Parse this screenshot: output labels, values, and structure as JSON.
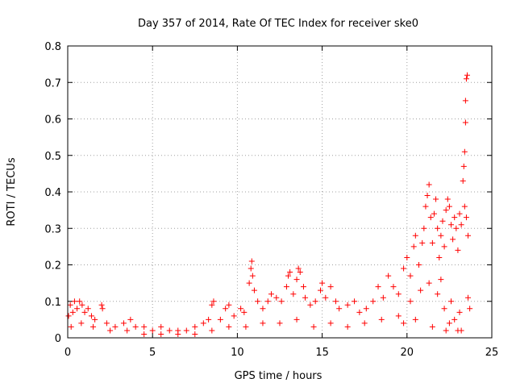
{
  "chart_data": {
    "type": "scatter",
    "title": "Day 357 of 2014, Rate Of TEC Index for receiver ske0",
    "xlabel": "GPS time / hours",
    "ylabel": "ROTI / TECUs",
    "xlim": [
      0,
      25
    ],
    "ylim": [
      0,
      0.8
    ],
    "xticks": [
      0,
      5,
      10,
      15,
      20,
      25
    ],
    "xtick_labels": [
      "0",
      "5",
      "10",
      "15",
      "20",
      "25"
    ],
    "yticks": [
      0,
      0.1,
      0.2,
      0.3,
      0.4,
      0.5,
      0.6,
      0.7,
      0.8
    ],
    "ytick_labels": [
      "0",
      "0.1",
      "0.2",
      "0.3",
      "0.4",
      "0.5",
      "0.6",
      "0.7",
      "0.8"
    ],
    "grid": true,
    "marker": "+",
    "color": "#ff0000",
    "series": [
      {
        "name": "ROTI",
        "points": [
          [
            0.05,
            0.06
          ],
          [
            0.15,
            0.09
          ],
          [
            0.3,
            0.07
          ],
          [
            0.4,
            0.1
          ],
          [
            0.55,
            0.08
          ],
          [
            0.7,
            0.1
          ],
          [
            0.85,
            0.09
          ],
          [
            1.0,
            0.07
          ],
          [
            1.2,
            0.08
          ],
          [
            1.4,
            0.06
          ],
          [
            1.6,
            0.05
          ],
          [
            2.0,
            0.09
          ],
          [
            2.05,
            0.08
          ],
          [
            2.3,
            0.04
          ],
          [
            2.8,
            0.03
          ],
          [
            3.3,
            0.04
          ],
          [
            3.7,
            0.05
          ],
          [
            4.0,
            0.03
          ],
          [
            4.5,
            0.03
          ],
          [
            5.0,
            0.02
          ],
          [
            5.5,
            0.03
          ],
          [
            6.0,
            0.02
          ],
          [
            6.5,
            0.02
          ],
          [
            7.0,
            0.02
          ],
          [
            7.5,
            0.03
          ],
          [
            8.0,
            0.04
          ],
          [
            8.3,
            0.05
          ],
          [
            8.5,
            0.09
          ],
          [
            8.6,
            0.1
          ],
          [
            9.0,
            0.05
          ],
          [
            9.3,
            0.08
          ],
          [
            9.5,
            0.09
          ],
          [
            9.8,
            0.06
          ],
          [
            10.2,
            0.08
          ],
          [
            10.4,
            0.07
          ],
          [
            10.7,
            0.15
          ],
          [
            10.8,
            0.19
          ],
          [
            10.85,
            0.21
          ],
          [
            10.9,
            0.17
          ],
          [
            11.0,
            0.13
          ],
          [
            11.2,
            0.1
          ],
          [
            11.5,
            0.08
          ],
          [
            11.8,
            0.1
          ],
          [
            12.0,
            0.12
          ],
          [
            12.3,
            0.11
          ],
          [
            12.6,
            0.1
          ],
          [
            12.9,
            0.14
          ],
          [
            13.0,
            0.17
          ],
          [
            13.1,
            0.18
          ],
          [
            13.3,
            0.12
          ],
          [
            13.5,
            0.16
          ],
          [
            13.6,
            0.19
          ],
          [
            13.7,
            0.18
          ],
          [
            13.9,
            0.14
          ],
          [
            14.0,
            0.11
          ],
          [
            14.3,
            0.09
          ],
          [
            14.6,
            0.1
          ],
          [
            14.9,
            0.13
          ],
          [
            15.0,
            0.15
          ],
          [
            15.2,
            0.11
          ],
          [
            15.5,
            0.14
          ],
          [
            15.8,
            0.1
          ],
          [
            16.0,
            0.08
          ],
          [
            16.5,
            0.09
          ],
          [
            16.9,
            0.1
          ],
          [
            17.2,
            0.07
          ],
          [
            17.6,
            0.08
          ],
          [
            18.0,
            0.1
          ],
          [
            18.3,
            0.14
          ],
          [
            18.6,
            0.11
          ],
          [
            18.9,
            0.17
          ],
          [
            19.2,
            0.14
          ],
          [
            19.5,
            0.12
          ],
          [
            19.8,
            0.19
          ],
          [
            20.0,
            0.22
          ],
          [
            20.2,
            0.17
          ],
          [
            20.4,
            0.25
          ],
          [
            20.5,
            0.28
          ],
          [
            20.7,
            0.2
          ],
          [
            20.9,
            0.26
          ],
          [
            21.0,
            0.3
          ],
          [
            21.1,
            0.36
          ],
          [
            21.2,
            0.39
          ],
          [
            21.3,
            0.42
          ],
          [
            21.4,
            0.33
          ],
          [
            21.5,
            0.26
          ],
          [
            21.6,
            0.34
          ],
          [
            21.7,
            0.38
          ],
          [
            21.8,
            0.3
          ],
          [
            21.9,
            0.22
          ],
          [
            22.0,
            0.28
          ],
          [
            22.1,
            0.32
          ],
          [
            22.2,
            0.25
          ],
          [
            22.3,
            0.35
          ],
          [
            22.4,
            0.38
          ],
          [
            22.5,
            0.36
          ],
          [
            22.6,
            0.31
          ],
          [
            22.7,
            0.27
          ],
          [
            22.8,
            0.33
          ],
          [
            22.9,
            0.3
          ],
          [
            23.0,
            0.24
          ],
          [
            23.1,
            0.34
          ],
          [
            23.2,
            0.31
          ],
          [
            23.3,
            0.43
          ],
          [
            23.35,
            0.47
          ],
          [
            23.4,
            0.51
          ],
          [
            23.45,
            0.59
          ],
          [
            23.45,
            0.65
          ],
          [
            23.5,
            0.71
          ],
          [
            23.55,
            0.72
          ],
          [
            23.4,
            0.36
          ],
          [
            23.5,
            0.33
          ],
          [
            23.6,
            0.28
          ],
          [
            23.6,
            0.11
          ],
          [
            23.7,
            0.08
          ],
          [
            0.2,
            0.03
          ],
          [
            0.8,
            0.04
          ],
          [
            1.5,
            0.03
          ],
          [
            2.5,
            0.02
          ],
          [
            3.5,
            0.02
          ],
          [
            4.5,
            0.01
          ],
          [
            5.5,
            0.01
          ],
          [
            6.5,
            0.01
          ],
          [
            7.5,
            0.01
          ],
          [
            8.5,
            0.02
          ],
          [
            9.5,
            0.03
          ],
          [
            10.5,
            0.03
          ],
          [
            11.5,
            0.04
          ],
          [
            12.5,
            0.04
          ],
          [
            13.5,
            0.05
          ],
          [
            14.5,
            0.03
          ],
          [
            15.5,
            0.04
          ],
          [
            16.5,
            0.03
          ],
          [
            17.5,
            0.04
          ],
          [
            18.5,
            0.05
          ],
          [
            19.5,
            0.06
          ],
          [
            20.5,
            0.05
          ],
          [
            21.5,
            0.03
          ],
          [
            22.5,
            0.04
          ],
          [
            23.2,
            0.02
          ],
          [
            21.8,
            0.12
          ],
          [
            22.2,
            0.08
          ],
          [
            22.6,
            0.1
          ],
          [
            22.8,
            0.05
          ],
          [
            23.1,
            0.07
          ],
          [
            20.2,
            0.1
          ],
          [
            20.8,
            0.13
          ],
          [
            19.8,
            0.04
          ],
          [
            21.3,
            0.15
          ],
          [
            22.0,
            0.16
          ],
          [
            23.0,
            0.02
          ],
          [
            22.3,
            0.02
          ]
        ]
      }
    ]
  }
}
